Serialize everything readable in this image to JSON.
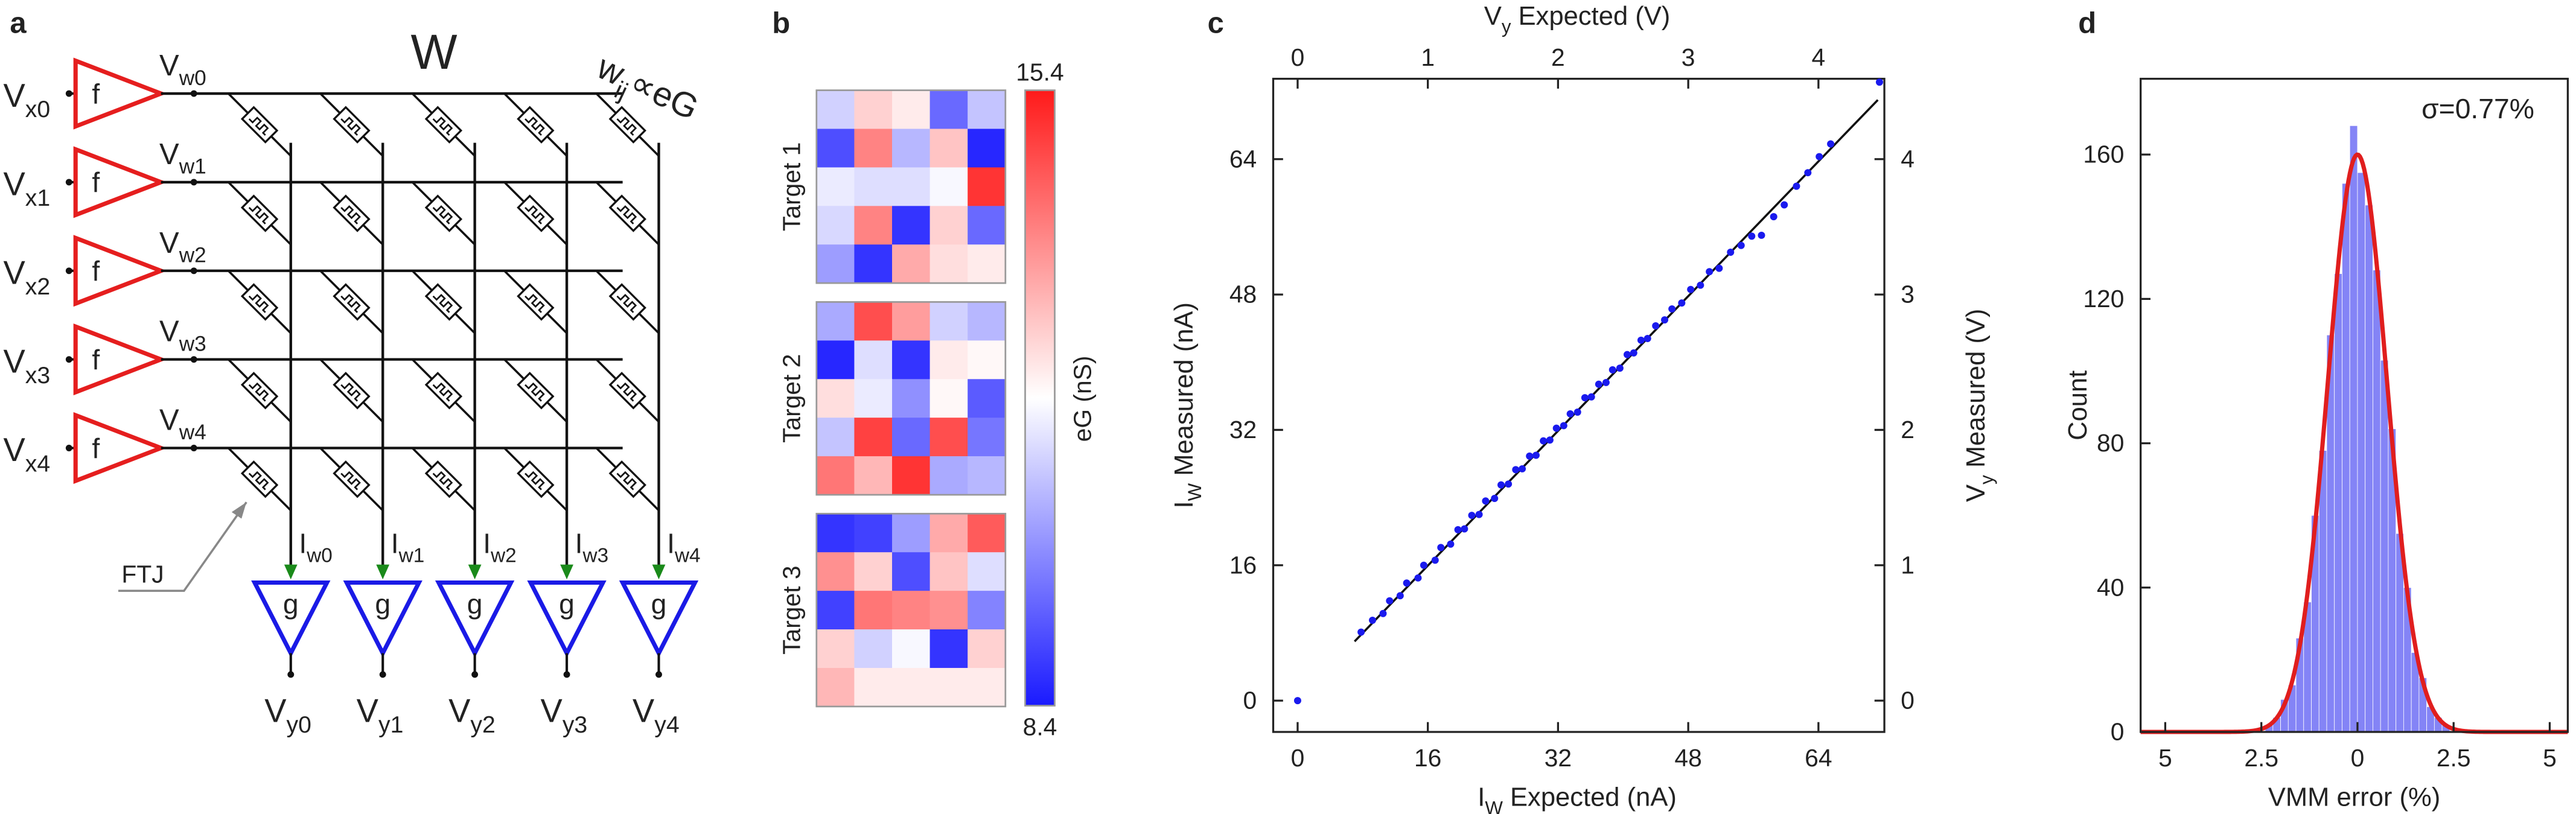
{
  "diagram": {
    "panel_label": "a",
    "weight_label": "W",
    "weight_formula": {
      "base": "w",
      "sub": "ij",
      "rest": "∝eG"
    },
    "device_label": "FTJ",
    "inputs": [
      {
        "label": {
          "base": "V",
          "sub": "x0"
        },
        "func": "f",
        "out": {
          "base": "V",
          "sub": "w0"
        }
      },
      {
        "label": {
          "base": "V",
          "sub": "x1"
        },
        "func": "f",
        "out": {
          "base": "V",
          "sub": "w1"
        }
      },
      {
        "label": {
          "base": "V",
          "sub": "x2"
        },
        "func": "f",
        "out": {
          "base": "V",
          "sub": "w2"
        }
      },
      {
        "label": {
          "base": "V",
          "sub": "x3"
        },
        "func": "f",
        "out": {
          "base": "V",
          "sub": "w3"
        }
      },
      {
        "label": {
          "base": "V",
          "sub": "x4"
        },
        "func": "f",
        "out": {
          "base": "V",
          "sub": "w4"
        }
      }
    ],
    "outputs": [
      {
        "current": {
          "base": "I",
          "sub": "w0"
        },
        "func": "g",
        "out": {
          "base": "V",
          "sub": "y0"
        }
      },
      {
        "current": {
          "base": "I",
          "sub": "w1"
        },
        "func": "g",
        "out": {
          "base": "V",
          "sub": "y1"
        }
      },
      {
        "current": {
          "base": "I",
          "sub": "w2"
        },
        "func": "g",
        "out": {
          "base": "V",
          "sub": "y2"
        }
      },
      {
        "current": {
          "base": "I",
          "sub": "w3"
        },
        "func": "g",
        "out": {
          "base": "V",
          "sub": "y3"
        }
      },
      {
        "current": {
          "base": "I",
          "sub": "w4"
        },
        "func": "g",
        "out": {
          "base": "V",
          "sub": "y4"
        }
      }
    ]
  },
  "chart_data": [
    {
      "type": "heatmap",
      "panel_label": "b",
      "clim": [
        8.4,
        15.4
      ],
      "colorbar_label": "eG (nS)",
      "colors": [
        "#1a1aff",
        "#ffffff",
        "#ff1a1a"
      ],
      "panels": [
        {
          "label": "Target 1",
          "values": [
            [
              11.2,
              12.6,
              12.2,
              9.6,
              11.0
            ],
            [
              9.2,
              13.8,
              10.8,
              12.8,
              8.6
            ],
            [
              11.6,
              11.4,
              11.4,
              11.8,
              15.0
            ],
            [
              11.3,
              13.8,
              8.8,
              12.6,
              9.6
            ],
            [
              10.4,
              8.8,
              13.2,
              12.4,
              12.2
            ]
          ]
        },
        {
          "label": "Target 2",
          "values": [
            [
              10.6,
              14.6,
              13.4,
              11.2,
              10.8
            ],
            [
              8.6,
              11.4,
              8.8,
              12.2,
              12.0
            ],
            [
              12.4,
              11.6,
              10.2,
              12.0,
              9.4
            ],
            [
              11.0,
              14.8,
              9.6,
              14.6,
              9.8
            ],
            [
              14.0,
              13.0,
              15.0,
              10.6,
              10.8
            ]
          ]
        },
        {
          "label": "Target 3",
          "values": [
            [
              8.8,
              9.0,
              10.4,
              13.2,
              14.4
            ],
            [
              13.6,
              12.6,
              9.2,
              12.8,
              11.4
            ],
            [
              9.0,
              14.0,
              13.8,
              13.6,
              10.0
            ],
            [
              12.6,
              11.2,
              11.8,
              8.8,
              12.6
            ],
            [
              13.0,
              12.2,
              12.2,
              12.2,
              12.2
            ]
          ]
        }
      ]
    },
    {
      "type": "scatter",
      "panel_label": "c",
      "color": "#1a1aee",
      "xlabel": {
        "base": "I",
        "sub": "W",
        "rest": " Expected (nA)"
      },
      "ylabel": {
        "base": "I",
        "sub": "W",
        "rest": " Measured (nA)"
      },
      "x2label": {
        "base": "V",
        "sub": "y",
        "rest": " Expected (V)"
      },
      "y2label": {
        "base": "V",
        "sub": "y",
        "rest": " Measured (V)"
      },
      "x": [
        0,
        7.8,
        9.2,
        10.5,
        11.3,
        12.6,
        13.4,
        14.8,
        15.5,
        16.9,
        17.6,
        18.8,
        19.7,
        20.5,
        21.4,
        22.3,
        23.1,
        24.2,
        25.0,
        25.9,
        26.8,
        27.6,
        28.5,
        29.3,
        30.2,
        31.0,
        31.8,
        32.7,
        33.5,
        34.4,
        35.3,
        36.1,
        37.0,
        37.9,
        38.7,
        39.6,
        40.5,
        41.3,
        42.2,
        43.0,
        44.0,
        45.1,
        46.0,
        47.2,
        48.3,
        49.5,
        50.6,
        51.8,
        53.2,
        54.5,
        55.8,
        57.0,
        58.5,
        59.8,
        61.3,
        62.7,
        64.1,
        65.5,
        71.5
      ],
      "y": [
        0,
        8.1,
        9.5,
        10.3,
        11.8,
        12.4,
        13.9,
        14.5,
        16.0,
        16.6,
        18.1,
        18.5,
        20.2,
        20.3,
        21.9,
        22.0,
        23.6,
        23.9,
        25.5,
        25.6,
        27.3,
        27.4,
        28.9,
        29.0,
        30.7,
        30.8,
        32.2,
        32.5,
        33.9,
        34.1,
        35.8,
        35.9,
        37.4,
        37.6,
        39.1,
        39.3,
        40.9,
        41.1,
        42.6,
        42.8,
        44.3,
        45.0,
        46.3,
        47.0,
        48.6,
        49.1,
        50.7,
        51.1,
        53.0,
        53.8,
        54.9,
        55.0,
        57.2,
        58.6,
        60.8,
        62.4,
        64.3,
        65.8,
        73.1
      ],
      "reference_line": {
        "x": [
          7,
          71.3
        ],
        "y": [
          7,
          71
        ]
      },
      "xlim": [
        -3.0,
        72.1
      ],
      "ylim": [
        -3.7,
        73.5
      ],
      "x2lim": [
        -0.1875,
        4.50625
      ],
      "y2lim": [
        -0.23125,
        4.59375
      ],
      "xticks": [
        0,
        16,
        32,
        48,
        64
      ],
      "yticks": [
        0,
        16,
        32,
        48,
        64
      ],
      "x2ticks": [
        0,
        1,
        2,
        3,
        4
      ],
      "y2ticks": [
        0,
        1,
        2,
        3,
        4
      ]
    },
    {
      "type": "histogram",
      "panel_label": "d",
      "color": "#6e6ef5",
      "xlabel": "VMM error (%)",
      "ylabel": "Count",
      "annotation": "σ=0.77%",
      "bins": [
        -2.4,
        -2.2,
        -2.0,
        -1.8,
        -1.6,
        -1.4,
        -1.2,
        -1.0,
        -0.8,
        -0.6,
        -0.4,
        -0.2,
        0,
        0.2,
        0.4,
        0.6,
        0.8,
        1.0,
        1.2,
        1.4,
        1.6,
        1.8,
        2.0,
        2.2,
        2.4
      ],
      "counts": [
        2,
        4,
        9,
        13,
        26,
        36,
        60,
        78,
        110,
        127,
        152,
        168,
        155,
        146,
        128,
        103,
        84,
        55,
        40,
        22,
        15,
        7,
        4,
        2
      ],
      "fit": {
        "mean": 0,
        "sigma": 0.77,
        "peak": 160,
        "color": "#e01e1e"
      },
      "xlim": [
        -5.64,
        5.47
      ],
      "ylim": [
        0,
        181
      ],
      "xticks": [
        {
          "value": -5,
          "label": "5"
        },
        {
          "value": -2.5,
          "label": "2.5"
        },
        0,
        2.5,
        5
      ],
      "yticks": [
        0,
        40,
        80,
        120,
        160
      ]
    }
  ]
}
